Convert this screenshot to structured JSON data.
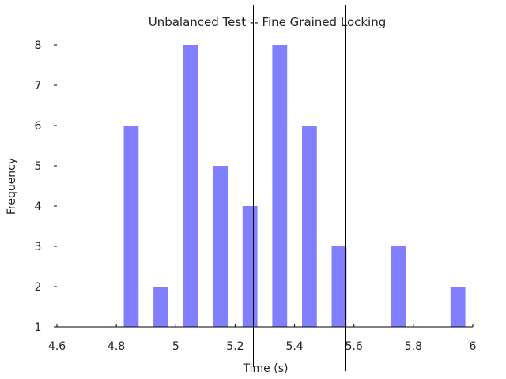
{
  "chart_data": {
    "type": "bar",
    "title": "Unbalanced Test -- Fine Grained Locking",
    "xlabel": "Time (s)",
    "ylabel": "Frequency",
    "xlim": [
      4.6,
      6.0
    ],
    "ylim": [
      1,
      8
    ],
    "x_ticks": [
      "4.6",
      "4.8",
      "5",
      "5.2",
      "5.4",
      "5.6",
      "5.8",
      "6"
    ],
    "y_ticks": [
      "1",
      "2",
      "3",
      "4",
      "5",
      "6",
      "7",
      "8"
    ],
    "bar_color": "#8080ff",
    "bar_width": 0.05,
    "x": [
      4.85,
      4.95,
      5.05,
      5.15,
      5.25,
      5.35,
      5.45,
      5.55,
      5.75,
      5.95
    ],
    "values": [
      6,
      2,
      8,
      5,
      4,
      8,
      6,
      3,
      3,
      2
    ],
    "vertical_lines": [
      {
        "x": 5.26,
        "y_top": 9.0,
        "y_bottom": 0.0
      },
      {
        "x": 5.57,
        "y_top": 9.0,
        "y_bottom": -0.1
      },
      {
        "x": 5.965,
        "y_top": 9.0,
        "y_bottom": -0.1
      }
    ],
    "grid": false,
    "legend": "none"
  }
}
